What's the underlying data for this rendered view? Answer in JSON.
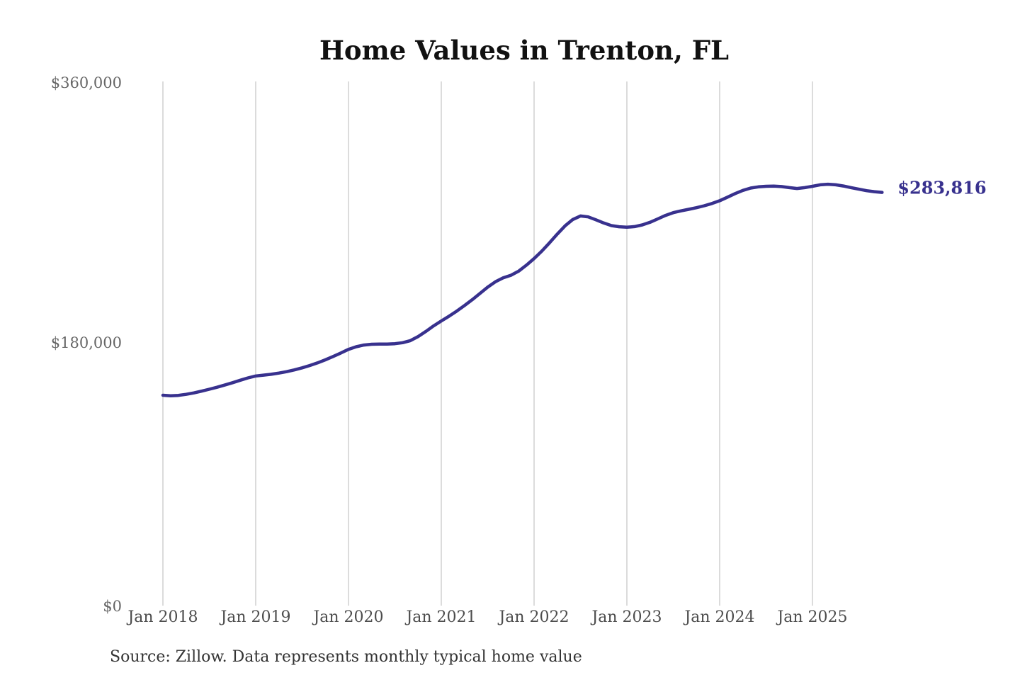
{
  "page": {
    "background_color": "#ffffff"
  },
  "chart_data": {
    "type": "line",
    "title": "Home Values in Trenton, FL",
    "source": "Source: Zillow. Data represents monthly typical home value",
    "series_name": "Monthly typical home value",
    "end_label": "$283,816",
    "end_value": 283816,
    "line_color": "#38318e",
    "grid_color": "#cccccc",
    "xlabel": "",
    "ylabel": "",
    "ylim": [
      0,
      360000
    ],
    "grid": "vertical-only",
    "legend": "none",
    "y_ticks": [
      {
        "label": "$360,000",
        "value": 360000
      },
      {
        "label": "$180,000",
        "value": 180000
      },
      {
        "label": "$0",
        "value": 0
      }
    ],
    "x_tick_labels": [
      "Jan 2018",
      "Jan 2019",
      "Jan 2020",
      "Jan 2021",
      "Jan 2022",
      "Jan 2023",
      "Jan 2024",
      "Jan 2025"
    ],
    "x_start": "Jan 2018",
    "x_end": "Oct 2025",
    "x_frequency": "monthly",
    "values": [
      144500,
      144100,
      144400,
      145100,
      146100,
      147300,
      148600,
      150000,
      151500,
      153100,
      154800,
      156400,
      157700,
      158300,
      158900,
      159700,
      160700,
      161900,
      163300,
      164900,
      166700,
      168800,
      171100,
      173500,
      176000,
      177800,
      179000,
      179500,
      179600,
      179600,
      179900,
      180600,
      182000,
      184800,
      188300,
      192100,
      195500,
      198800,
      202300,
      206100,
      210100,
      214400,
      218700,
      222400,
      225100,
      226900,
      229700,
      233800,
      238400,
      243500,
      249200,
      255200,
      260800,
      265200,
      267600,
      267000,
      265000,
      262800,
      261000,
      260200,
      259900,
      260300,
      261500,
      263300,
      265600,
      268000,
      269900,
      271100,
      272200,
      273300,
      274600,
      276200,
      278100,
      280500,
      283000,
      285200,
      286800,
      287600,
      288000,
      288100,
      287800,
      287100,
      286500,
      287100,
      288000,
      289000,
      289400,
      289000,
      288200,
      287100,
      286000,
      285000,
      284300,
      283816
    ]
  }
}
